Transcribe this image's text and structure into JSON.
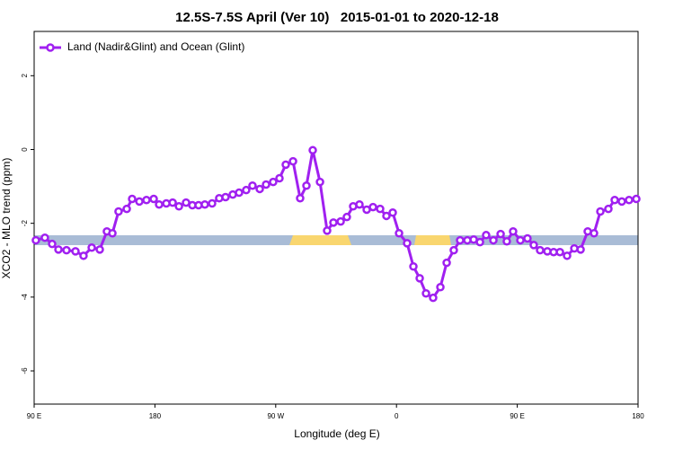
{
  "chart_data": {
    "type": "line",
    "title": "12.5S-7.5S April (Ver 10)   2015-01-01 to 2020-12-18",
    "xlabel": "Longitude (deg E)",
    "ylabel": "XCO2 - MLO trend (ppm)",
    "xlim": [
      90,
      540
    ],
    "ylim": [
      -6.9,
      3.2
    ],
    "xticks": [
      {
        "value": 90,
        "label": "90 E"
      },
      180,
      {
        "value": 270,
        "label": "90 W"
      },
      {
        "value": 360,
        "label": "0"
      },
      {
        "value": 450,
        "label": "90 E"
      },
      {
        "value": 540,
        "label": "180"
      }
    ],
    "yticks": [
      2,
      0,
      -2,
      -4,
      -6
    ],
    "legend": "upper left",
    "series": [
      {
        "name": "Land (Nadir&Glint) and Ocean (Glint)",
        "color": "#a020f0",
        "x": [
          91.3,
          98.0,
          103.4,
          108.1,
          114.1,
          120.8,
          126.8,
          132.9,
          138.9,
          144.2,
          148.3,
          152.9,
          159.0,
          163.0,
          168.4,
          173.7,
          179.1,
          183.1,
          188.5,
          193.2,
          197.9,
          203.2,
          207.9,
          212.5,
          217.2,
          222.6,
          227.9,
          232.6,
          238.0,
          242.7,
          248.0,
          252.7,
          258.1,
          262.8,
          268.1,
          272.8,
          277.5,
          282.9,
          288.2,
          292.9,
          297.6,
          303.0,
          308.3,
          313.0,
          318.4,
          323.0,
          327.7,
          332.4,
          337.8,
          342.5,
          347.8,
          352.5,
          357.2,
          361.9,
          367.9,
          372.6,
          377.3,
          382.0,
          387.3,
          392.7,
          397.4,
          402.7,
          407.4,
          412.8,
          417.5,
          422.2,
          426.8,
          432.2,
          437.6,
          442.2,
          446.9,
          452.3,
          457.6,
          462.3,
          467.0,
          472.4,
          477.1,
          481.8,
          487.1,
          492.5,
          497.2,
          502.5,
          507.2,
          511.9,
          517.9,
          522.6,
          527.9,
          533.3,
          538.7
        ],
        "values": [
          -2.46,
          -2.39,
          -2.56,
          -2.71,
          -2.73,
          -2.76,
          -2.88,
          -2.66,
          -2.71,
          -2.22,
          -2.27,
          -1.68,
          -1.61,
          -1.34,
          -1.41,
          -1.37,
          -1.34,
          -1.49,
          -1.46,
          -1.44,
          -1.54,
          -1.44,
          -1.51,
          -1.51,
          -1.49,
          -1.46,
          -1.32,
          -1.29,
          -1.22,
          -1.17,
          -1.1,
          -0.98,
          -1.07,
          -0.95,
          -0.88,
          -0.78,
          -0.41,
          -0.32,
          -1.32,
          -0.98,
          -0.02,
          -0.88,
          -2.2,
          -1.98,
          -1.95,
          -1.83,
          -1.54,
          -1.49,
          -1.63,
          -1.56,
          -1.61,
          -1.8,
          -1.71,
          -2.27,
          -2.54,
          -3.17,
          -3.49,
          -3.9,
          -4.02,
          -3.73,
          -3.07,
          -2.73,
          -2.46,
          -2.46,
          -2.44,
          -2.51,
          -2.32,
          -2.46,
          -2.29,
          -2.49,
          -2.22,
          -2.46,
          -2.41,
          -2.59,
          -2.73,
          -2.76,
          -2.78,
          -2.78,
          -2.88,
          -2.68,
          -2.71,
          -2.22,
          -2.27,
          -1.68,
          -1.61,
          -1.37,
          -1.41,
          -1.37,
          -1.34
        ]
      }
    ]
  }
}
